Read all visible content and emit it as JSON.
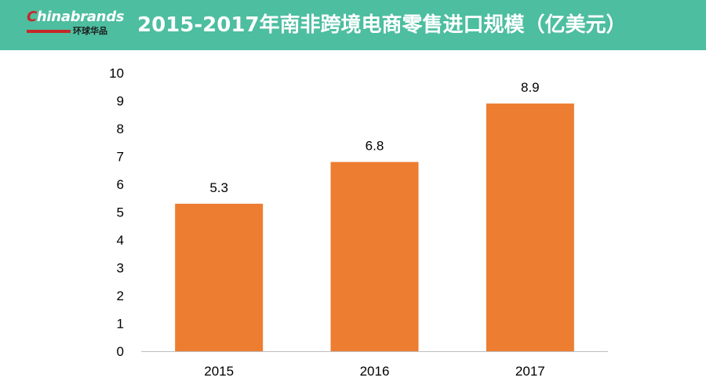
{
  "header": {
    "logo_text_c": "C",
    "logo_text_rest": "hinabrands",
    "logo_subtitle": "环球华品",
    "title": "2015-2017年南非跨境电商零售进口规模（亿美元）"
  },
  "colors": {
    "header_bg": "#4dbea0",
    "bar": "#ed7d31",
    "logo_red": "#c62828"
  },
  "chart_data": {
    "type": "bar",
    "categories": [
      "2015",
      "2016",
      "2017"
    ],
    "values": [
      5.3,
      6.8,
      8.9
    ],
    "data_labels": [
      "5.3",
      "6.8",
      "8.9"
    ],
    "title": "2015-2017年南非跨境电商零售进口规模（亿美元）",
    "xlabel": "",
    "ylabel": "",
    "ylim": [
      0,
      10
    ],
    "yticks": [
      "0",
      "1",
      "2",
      "3",
      "4",
      "5",
      "6",
      "7",
      "8",
      "9",
      "10"
    ],
    "grid": false,
    "legend": "none"
  }
}
